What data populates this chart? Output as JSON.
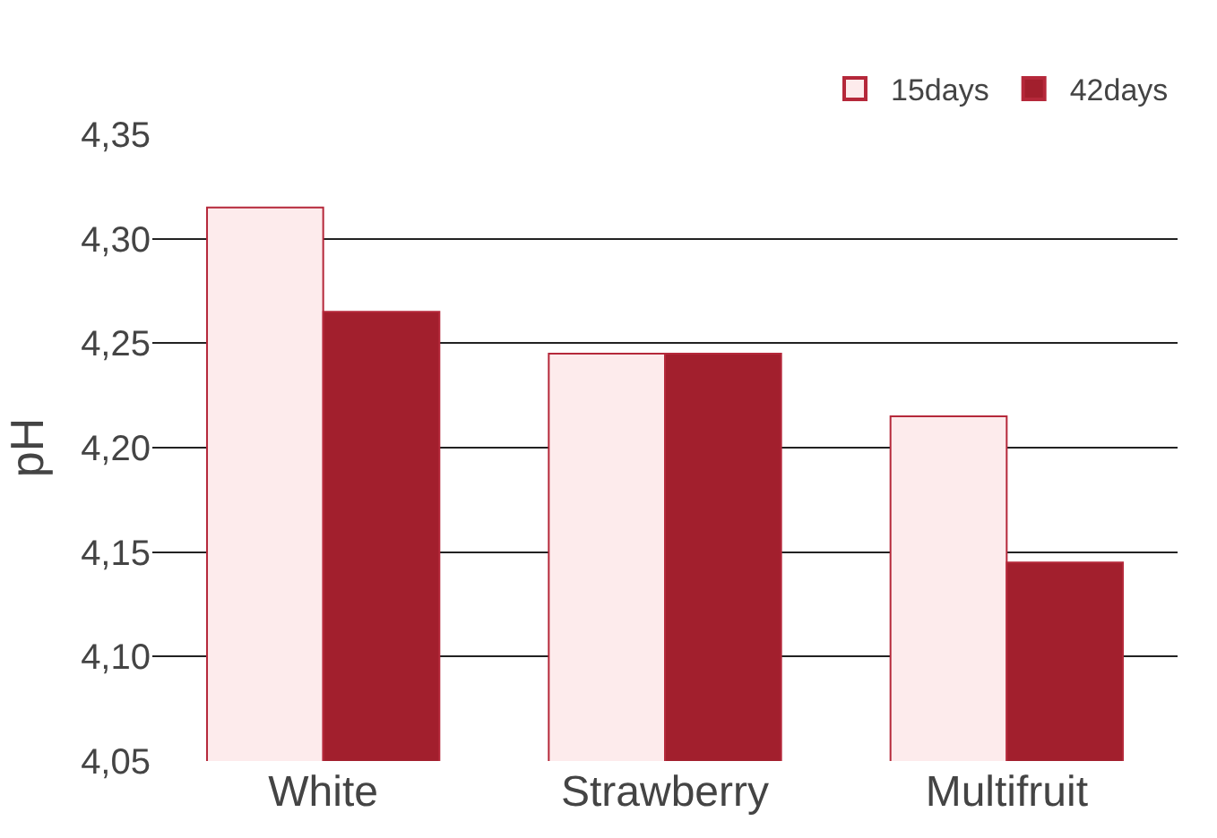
{
  "chart_data": {
    "type": "bar",
    "ylabel": "pH",
    "categories": [
      "White",
      "Strawberry",
      "Multifruit"
    ],
    "series": [
      {
        "name": "15days",
        "color": "#fdebec",
        "values": [
          4.315,
          4.245,
          4.215
        ]
      },
      {
        "name": "42days",
        "color": "#a21f2d",
        "values": [
          4.265,
          4.245,
          4.145
        ]
      }
    ],
    "ylim": [
      4.05,
      4.35
    ],
    "yticks": [
      {
        "value": 4.05,
        "label": "4,05"
      },
      {
        "value": 4.1,
        "label": "4,10"
      },
      {
        "value": 4.15,
        "label": "4,15"
      },
      {
        "value": 4.2,
        "label": "4,20"
      },
      {
        "value": 4.25,
        "label": "4,25"
      },
      {
        "value": 4.3,
        "label": "4,30"
      },
      {
        "value": 4.35,
        "label": "4,35"
      }
    ],
    "grid": "y",
    "legend": "top right"
  }
}
